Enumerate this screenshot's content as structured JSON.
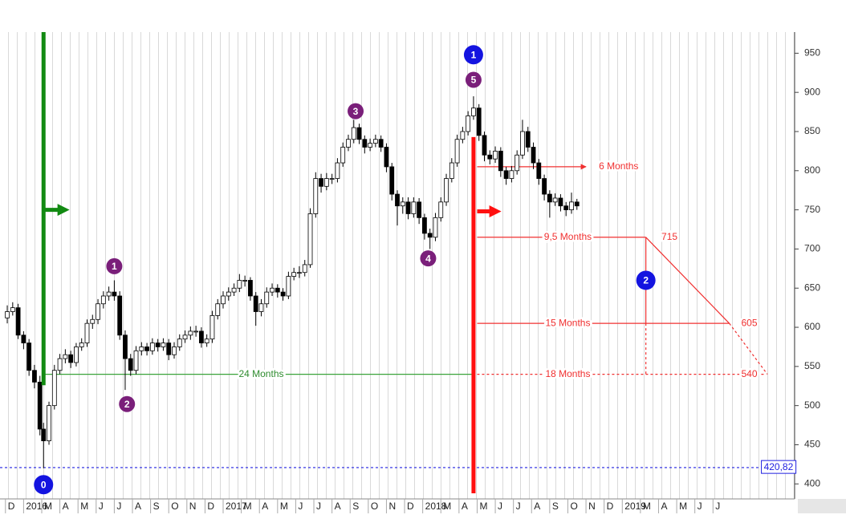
{
  "chart_data": {
    "type": "candlestick",
    "xlim": [
      -1.3,
      42.5
    ],
    "ylim": [
      388,
      977
    ],
    "yticks": [
      400,
      450,
      500,
      550,
      600,
      650,
      700,
      750,
      800,
      850,
      900,
      950
    ],
    "xticks": [
      {
        "value": -1,
        "label": "D"
      },
      {
        "value": 0,
        "label": "2016"
      },
      {
        "value": 1,
        "label": "M"
      },
      {
        "value": 2,
        "label": "A"
      },
      {
        "value": 3,
        "label": "M"
      },
      {
        "value": 4,
        "label": "J"
      },
      {
        "value": 5,
        "label": "J"
      },
      {
        "value": 6,
        "label": "A"
      },
      {
        "value": 7,
        "label": "S"
      },
      {
        "value": 8,
        "label": "O"
      },
      {
        "value": 9,
        "label": "N"
      },
      {
        "value": 10,
        "label": "D"
      },
      {
        "value": 11,
        "label": "2017"
      },
      {
        "value": 12,
        "label": "M"
      },
      {
        "value": 13,
        "label": "A"
      },
      {
        "value": 14,
        "label": "M"
      },
      {
        "value": 15,
        "label": "J"
      },
      {
        "value": 16,
        "label": "J"
      },
      {
        "value": 17,
        "label": "A"
      },
      {
        "value": 18,
        "label": "S"
      },
      {
        "value": 19,
        "label": "O"
      },
      {
        "value": 20,
        "label": "N"
      },
      {
        "value": 21,
        "label": "D"
      },
      {
        "value": 22,
        "label": "2018"
      },
      {
        "value": 23,
        "label": "M"
      },
      {
        "value": 24,
        "label": "A"
      },
      {
        "value": 25,
        "label": "M"
      },
      {
        "value": 26,
        "label": "J"
      },
      {
        "value": 27,
        "label": "J"
      },
      {
        "value": 28,
        "label": "A"
      },
      {
        "value": 29,
        "label": "S"
      },
      {
        "value": 30,
        "label": "O"
      },
      {
        "value": 31,
        "label": "N"
      },
      {
        "value": 32,
        "label": "D"
      },
      {
        "value": 33,
        "label": "2019"
      },
      {
        "value": 34,
        "label": "M"
      },
      {
        "value": 35,
        "label": "A"
      },
      {
        "value": 36,
        "label": "M"
      },
      {
        "value": 37,
        "label": "J"
      },
      {
        "value": 38,
        "label": "J"
      }
    ],
    "x": [
      -0.9,
      -0.6,
      -0.3,
      0,
      0.3,
      0.6,
      0.9,
      1.1,
      1.4,
      1.7,
      2.0,
      2.3,
      2.6,
      2.9,
      3.2,
      3.5,
      3.8,
      4.1,
      4.4,
      4.7,
      5.0,
      5.3,
      5.6,
      5.9,
      6.2,
      6.5,
      6.8,
      7.1,
      7.4,
      7.7,
      8.0,
      8.3,
      8.6,
      8.9,
      9.2,
      9.5,
      9.8,
      10.1,
      10.4,
      10.7,
      11.0,
      11.3,
      11.6,
      11.9,
      12.2,
      12.5,
      12.8,
      13.1,
      13.4,
      13.7,
      14.0,
      14.3,
      14.6,
      14.9,
      15.2,
      15.5,
      15.8,
      16.1,
      16.4,
      16.7,
      17.0,
      17.3,
      17.6,
      17.9,
      18.2,
      18.5,
      18.8,
      19.1,
      19.4,
      19.7,
      20.0,
      20.3,
      20.6,
      20.9,
      21.2,
      21.5,
      21.8,
      22.1,
      22.4,
      22.7,
      23.0,
      23.3,
      23.6,
      23.9,
      24.2,
      24.5,
      24.8,
      25.1,
      25.4,
      25.7,
      26.0,
      26.3,
      26.6,
      26.9,
      27.2,
      27.5,
      27.8,
      28.1,
      28.4,
      28.7,
      29.0,
      29.3,
      29.6,
      29.9,
      30.2,
      30.5
    ],
    "open": [
      612,
      620,
      625,
      590,
      580,
      545,
      530,
      470,
      455,
      500,
      545,
      560,
      565,
      555,
      575,
      580,
      605,
      610,
      630,
      640,
      645,
      640,
      590,
      560,
      545,
      570,
      575,
      570,
      580,
      575,
      580,
      565,
      575,
      585,
      590,
      595,
      595,
      580,
      585,
      615,
      630,
      640,
      645,
      650,
      660,
      660,
      640,
      620,
      630,
      645,
      650,
      645,
      640,
      665,
      670,
      670,
      680,
      745,
      790,
      780,
      790,
      790,
      810,
      830,
      840,
      855,
      840,
      830,
      835,
      840,
      830,
      805,
      770,
      755,
      760,
      745,
      760,
      740,
      720,
      715,
      740,
      760,
      790,
      810,
      840,
      850,
      870,
      880,
      845,
      820,
      815,
      825,
      800,
      790,
      800,
      820,
      850,
      830,
      810,
      790,
      770,
      760,
      765,
      755,
      750,
      760
    ],
    "high": [
      628,
      632,
      630,
      595,
      585,
      552,
      538,
      478,
      505,
      552,
      566,
      572,
      570,
      580,
      586,
      610,
      616,
      636,
      646,
      652,
      660,
      646,
      596,
      566,
      576,
      581,
      580,
      586,
      585,
      586,
      585,
      581,
      591,
      596,
      601,
      602,
      600,
      591,
      621,
      636,
      646,
      651,
      656,
      668,
      666,
      664,
      645,
      636,
      651,
      656,
      655,
      650,
      671,
      676,
      678,
      686,
      752,
      798,
      796,
      797,
      796,
      816,
      836,
      846,
      865,
      860,
      845,
      841,
      846,
      845,
      835,
      810,
      775,
      766,
      766,
      766,
      765,
      745,
      726,
      746,
      766,
      796,
      816,
      846,
      856,
      876,
      895,
      885,
      850,
      826,
      831,
      830,
      805,
      806,
      826,
      865,
      856,
      836,
      815,
      795,
      775,
      771,
      770,
      760,
      772,
      764
    ],
    "low": [
      605,
      615,
      585,
      572,
      538,
      522,
      462,
      420,
      450,
      495,
      540,
      554,
      548,
      550,
      570,
      575,
      598,
      604,
      624,
      634,
      634,
      584,
      520,
      538,
      540,
      564,
      564,
      565,
      569,
      570,
      558,
      560,
      570,
      580,
      584,
      588,
      574,
      575,
      580,
      610,
      624,
      634,
      640,
      645,
      652,
      634,
      602,
      614,
      625,
      640,
      638,
      634,
      636,
      660,
      663,
      665,
      676,
      740,
      772,
      775,
      783,
      785,
      805,
      825,
      835,
      834,
      822,
      825,
      830,
      824,
      798,
      762,
      730,
      745,
      738,
      740,
      732,
      712,
      700,
      710,
      735,
      755,
      785,
      805,
      835,
      845,
      865,
      838,
      812,
      808,
      810,
      792,
      782,
      785,
      795,
      815,
      824,
      802,
      782,
      762,
      740,
      755,
      748,
      742,
      745,
      750
    ],
    "close": [
      620,
      625,
      590,
      580,
      545,
      530,
      470,
      455,
      500,
      545,
      560,
      565,
      555,
      575,
      580,
      605,
      610,
      630,
      640,
      645,
      640,
      590,
      560,
      545,
      570,
      575,
      570,
      580,
      575,
      580,
      565,
      575,
      585,
      590,
      595,
      595,
      580,
      585,
      615,
      630,
      640,
      645,
      650,
      660,
      660,
      640,
      620,
      630,
      645,
      650,
      645,
      640,
      665,
      670,
      670,
      680,
      745,
      790,
      780,
      790,
      790,
      810,
      830,
      840,
      855,
      840,
      830,
      835,
      840,
      830,
      805,
      770,
      755,
      760,
      745,
      760,
      740,
      720,
      715,
      740,
      760,
      790,
      810,
      840,
      850,
      870,
      880,
      845,
      820,
      815,
      825,
      800,
      790,
      800,
      820,
      850,
      830,
      810,
      790,
      770,
      760,
      765,
      755,
      750,
      760,
      755
    ],
    "up_color": "#ffffff",
    "down_color": "#000000",
    "segments": [
      {
        "kind": "line",
        "color": "#3aa33a",
        "x": [
          1.1,
          24.8
        ],
        "y": [
          540,
          540
        ]
      },
      {
        "kind": "dotted",
        "color": "#f03030",
        "x": [
          25.0,
          40.9
        ],
        "y": [
          540,
          540
        ]
      },
      {
        "kind": "line",
        "color": "#f03030",
        "x": [
          25.0,
          38.9
        ],
        "y": [
          605,
          605
        ]
      },
      {
        "kind": "line",
        "color": "#f03030",
        "x": [
          25.0,
          34.3
        ],
        "y": [
          715,
          715
        ]
      },
      {
        "kind": "arrow",
        "color": "#f03030",
        "x": [
          25.0,
          31.0
        ],
        "y": [
          805,
          805
        ]
      },
      {
        "kind": "line",
        "color": "#f03030",
        "x": [
          34.3,
          38.9
        ],
        "y": [
          715,
          605
        ]
      },
      {
        "kind": "dotted",
        "color": "#f03030",
        "x": [
          38.9,
          41.0
        ],
        "y": [
          605,
          540
        ]
      },
      {
        "kind": "line",
        "color": "#f03030",
        "x": [
          34.3,
          34.3
        ],
        "y": [
          715,
          605
        ]
      },
      {
        "kind": "dotted",
        "color": "#f03030",
        "x": [
          34.3,
          34.3
        ],
        "y": [
          605,
          540
        ]
      },
      {
        "kind": "dotted",
        "color": "#2020e0",
        "x": [
          -1.3,
          42.5
        ],
        "y": [
          420.82,
          420.82
        ]
      },
      {
        "kind": "bar",
        "color": "#128a12",
        "x": [
          1.1,
          1.1
        ],
        "y": [
          977,
          526
        ]
      },
      {
        "kind": "bar",
        "color": "#ff1010",
        "x": [
          24.8,
          24.8
        ],
        "y": [
          843,
          388
        ]
      },
      {
        "kind": "bold-arrow",
        "color": "#128a12",
        "x": [
          1.2,
          2.2
        ],
        "y": [
          750,
          750
        ]
      },
      {
        "kind": "bold-arrow",
        "color": "#ff1010",
        "x": [
          25.0,
          26.0
        ],
        "y": [
          748,
          748
        ]
      }
    ],
    "labels": [
      {
        "text": "24 Months",
        "color": "#2e8b2e",
        "x": 13.1,
        "y": 540
      },
      {
        "text": "18 Months",
        "color": "#f03030",
        "x": 30.0,
        "y": 540
      },
      {
        "text": "15 Months",
        "color": "#f03030",
        "x": 30.0,
        "y": 605
      },
      {
        "text": "9,5 Months",
        "color": "#f03030",
        "x": 30.0,
        "y": 715
      },
      {
        "text": "6 Months",
        "color": "#f03030",
        "x": 32.8,
        "y": 805
      },
      {
        "text": 715,
        "color": "#f03030",
        "x": 35.6,
        "y": 715
      },
      {
        "text": 605,
        "color": "#f03030",
        "x": 40.0,
        "y": 605
      },
      {
        "text": 540,
        "color": "#f03030",
        "x": 40.0,
        "y": 540
      }
    ],
    "last_level": {
      "value": 420.82,
      "label": "420,82",
      "color": "#2020e0",
      "x": 40.8
    },
    "markers": [
      {
        "label": "0",
        "color": "#1414e0",
        "x": 1.1,
        "y": 399
      },
      {
        "label": "1",
        "color": "#1414e0",
        "x": 24.8,
        "y": 948
      },
      {
        "label": "2",
        "color": "#1414e0",
        "x": 34.3,
        "y": 660
      },
      {
        "label": "1",
        "color": "#7a1f7a",
        "x": 5.0,
        "y": 678
      },
      {
        "label": "2",
        "color": "#7a1f7a",
        "x": 5.7,
        "y": 502
      },
      {
        "label": "3",
        "color": "#7a1f7a",
        "x": 18.3,
        "y": 876
      },
      {
        "label": "4",
        "color": "#7a1f7a",
        "x": 22.3,
        "y": 688
      },
      {
        "label": "5",
        "color": "#7a1f7a",
        "x": 24.8,
        "y": 916
      }
    ]
  }
}
